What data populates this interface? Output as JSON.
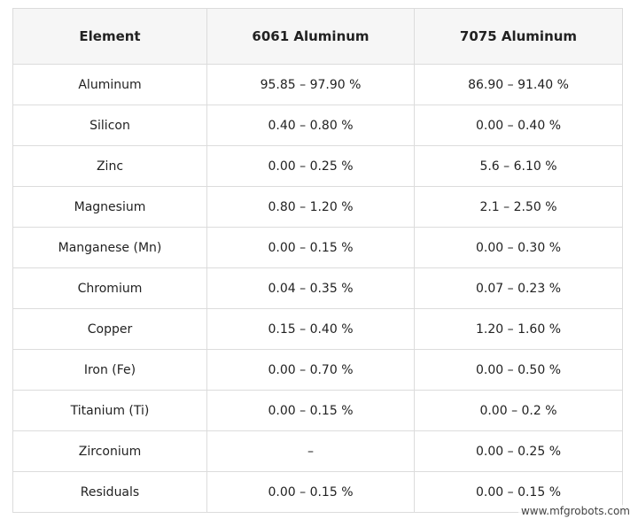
{
  "table": {
    "header": [
      "Element",
      "6061 Aluminum",
      "7075 Aluminum"
    ],
    "rows": [
      [
        "Aluminum",
        "95.85 – 97.90 %",
        "86.90 – 91.40 %"
      ],
      [
        "Silicon",
        "0.40 – 0.80 %",
        "0.00 – 0.40 %"
      ],
      [
        "Zinc",
        "0.00 – 0.25 %",
        "5.6 – 6.10 %"
      ],
      [
        "Magnesium",
        "0.80 – 1.20 %",
        "2.1 – 2.50 %"
      ],
      [
        "Manganese (Mn)",
        "0.00 – 0.15 %",
        "0.00 – 0.30 %"
      ],
      [
        "Chromium",
        "0.04 – 0.35 %",
        "0.07 – 0.23 %"
      ],
      [
        "Copper",
        "0.15 – 0.40 %",
        "1.20 – 1.60 %"
      ],
      [
        "Iron (Fe)",
        "0.00 – 0.70 %",
        "0.00 – 0.50 %"
      ],
      [
        "Titanium (Ti)",
        "0.00 – 0.15 %",
        "0.00 – 0.2 %"
      ],
      [
        "Zirconium",
        "–",
        "0.00 – 0.25 %"
      ],
      [
        "Residuals",
        "0.00 – 0.15 %",
        "0.00 – 0.15 %"
      ]
    ]
  },
  "watermark": "www.mfgrobots.com"
}
